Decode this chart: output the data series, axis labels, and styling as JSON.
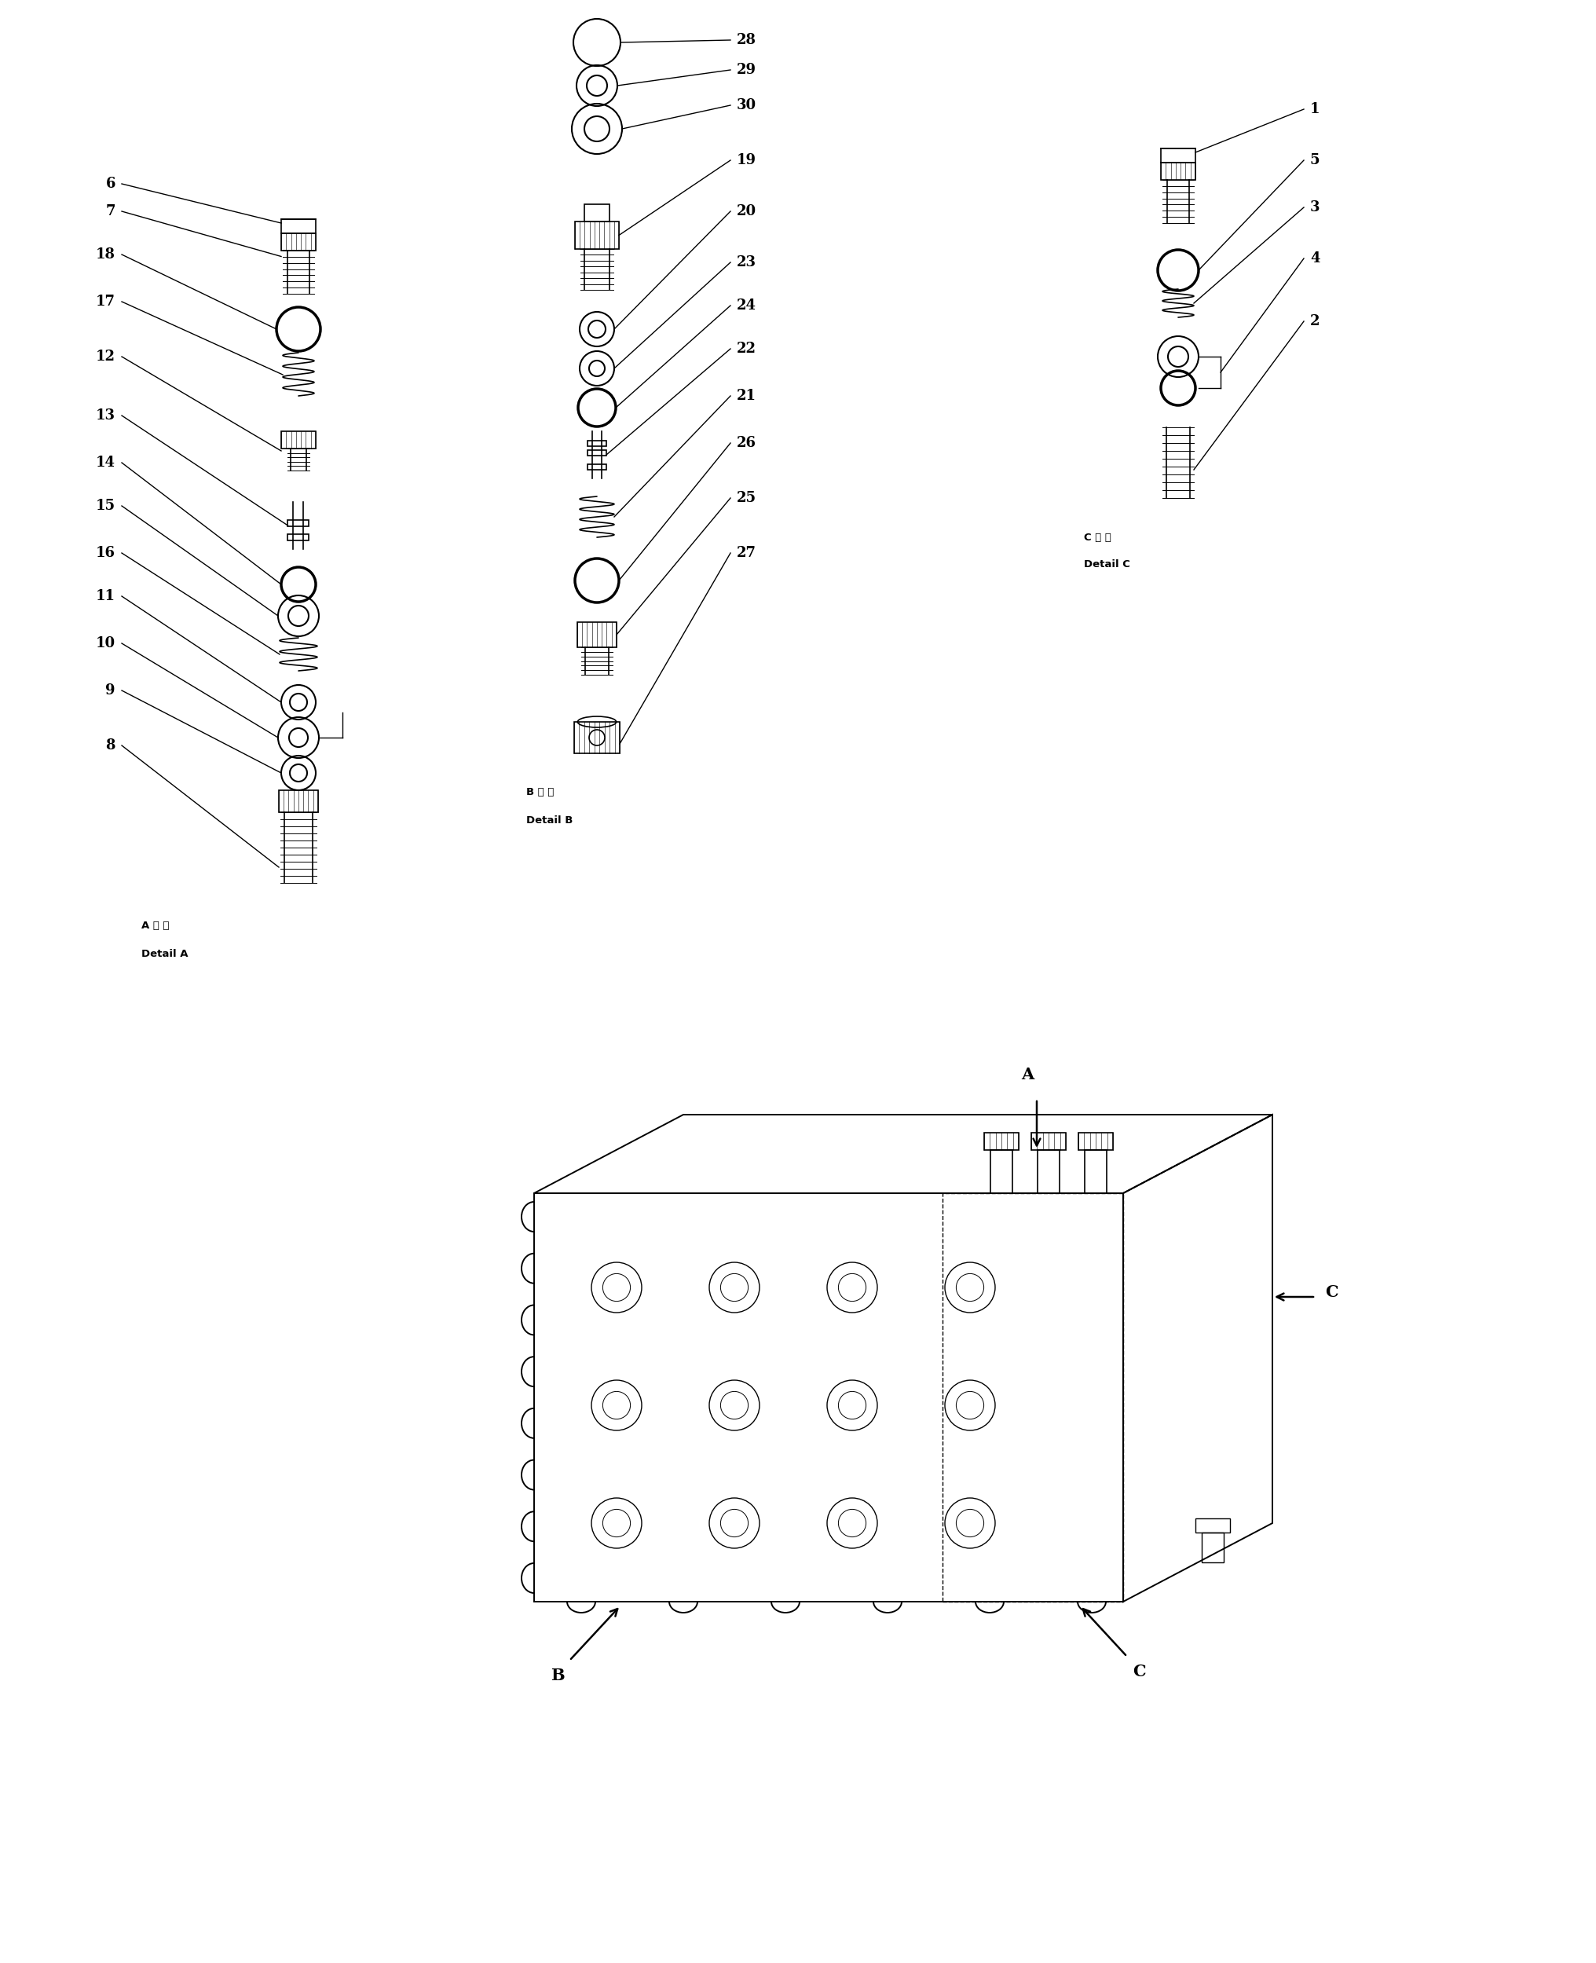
{
  "bg_color": "#ffffff",
  "line_color": "#000000",
  "fig_width": 20.32,
  "fig_height": 24.99,
  "detail_A_title_jp": "A 詳 細",
  "detail_A_title_en": "Detail A",
  "detail_B_title_jp": "B 詳 細",
  "detail_B_title_en": "Detail B",
  "detail_C_title_jp": "C 詳 細",
  "detail_C_title_en": "Detail C",
  "labels_A": [
    "6",
    "7",
    "18",
    "17",
    "12",
    "13",
    "14",
    "15",
    "16",
    "11",
    "10",
    "9",
    "8"
  ],
  "labels_B": [
    "28",
    "29",
    "30",
    "19",
    "20",
    "23",
    "24",
    "22",
    "21",
    "26",
    "25",
    "27"
  ],
  "labels_C": [
    "1",
    "5",
    "3",
    "4",
    "2"
  ]
}
